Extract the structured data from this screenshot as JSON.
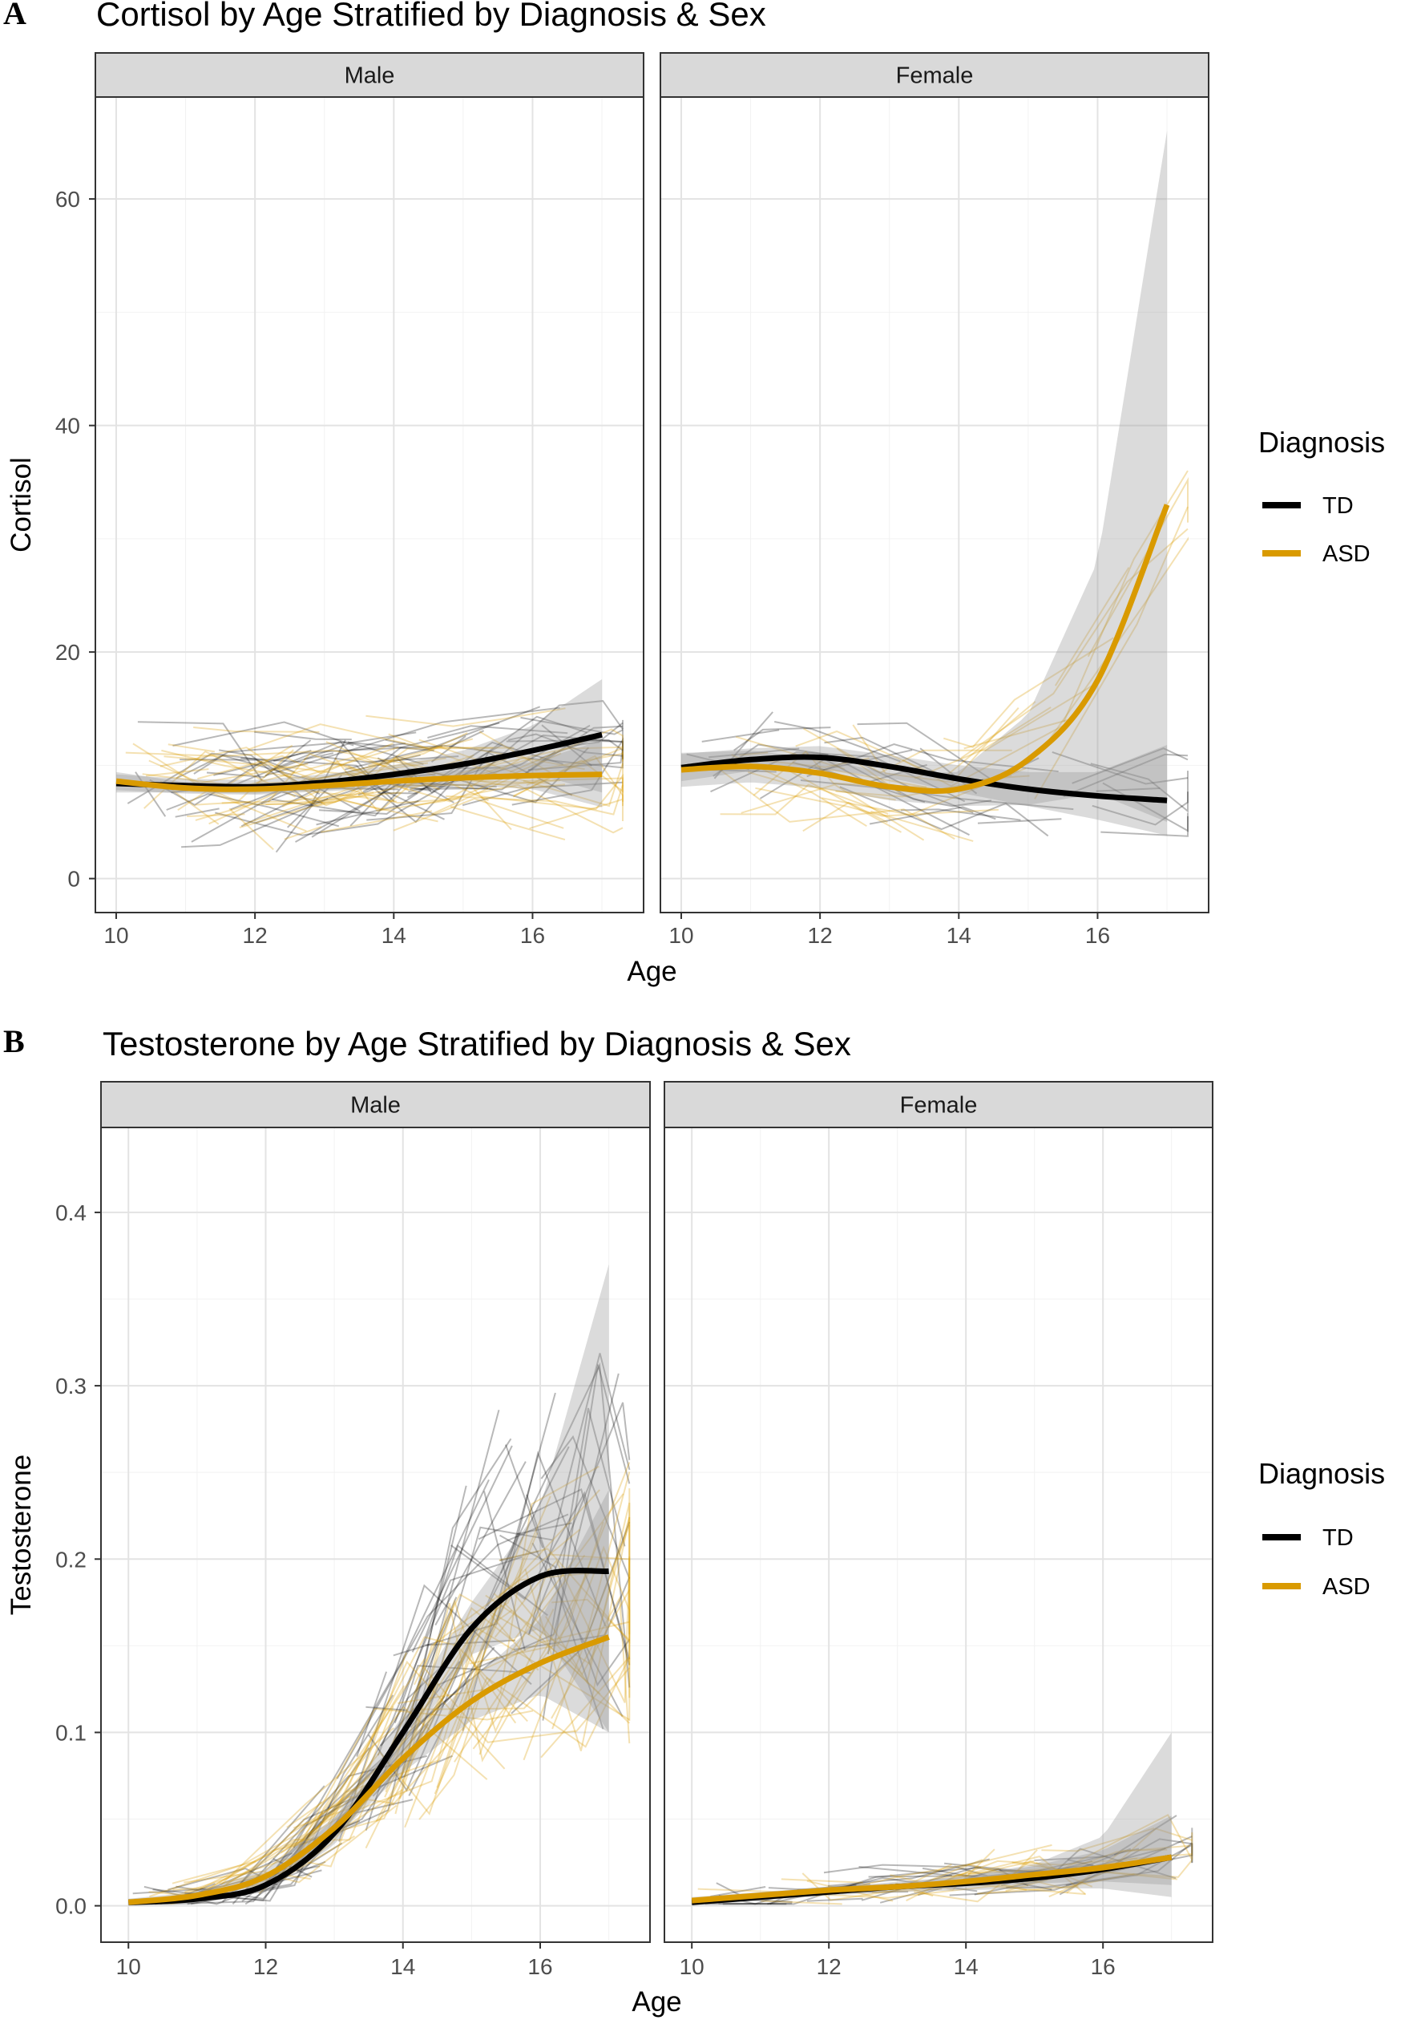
{
  "figure": {
    "legend": {
      "title": "Diagnosis",
      "entries": [
        {
          "name": "TD",
          "color": "#000000"
        },
        {
          "name": "ASD",
          "color": "#D99A00"
        }
      ]
    }
  },
  "chart_data": [
    {
      "panel_label": "A",
      "type": "line",
      "title": "Cortisol by Age Stratified by Diagnosis & Sex",
      "xlabel": "Age",
      "ylabel": "Cortisol",
      "xlim": [
        9.7,
        17.6
      ],
      "ylim": [
        -3,
        69
      ],
      "xticks": [
        10,
        12,
        14,
        16
      ],
      "yticks": [
        0,
        20,
        40,
        60
      ],
      "legend_position": "right",
      "facets": [
        {
          "name": "Male",
          "series": [
            {
              "name": "TD",
              "x": [
                10,
                11,
                12,
                13,
                14,
                15,
                16,
                17
              ],
              "y": [
                8.4,
                8.2,
                8.1,
                8.5,
                9.2,
                10.1,
                11.3,
                12.7
              ],
              "ci_low": [
                7.6,
                7.6,
                7.5,
                7.8,
                8.4,
                8.9,
                9.3,
                7.6
              ],
              "ci_high": [
                9.2,
                8.8,
                8.7,
                9.2,
                10.0,
                11.3,
                13.5,
                17.6
              ]
            },
            {
              "name": "ASD",
              "x": [
                10,
                11,
                12,
                13,
                14,
                15,
                16,
                17
              ],
              "y": [
                8.6,
                8.0,
                7.9,
                8.2,
                8.6,
                8.9,
                9.1,
                9.2
              ],
              "ci_low": [
                7.8,
                7.5,
                7.4,
                7.7,
                8.0,
                8.2,
                7.9,
                6.3
              ],
              "ci_high": [
                9.4,
                8.5,
                8.4,
                8.7,
                9.2,
                9.6,
                10.3,
                12.2
              ]
            }
          ]
        },
        {
          "name": "Female",
          "series": [
            {
              "name": "TD",
              "x": [
                10,
                11,
                12,
                13,
                14,
                15,
                16,
                17
              ],
              "y": [
                9.8,
                10.5,
                10.7,
                9.9,
                8.8,
                7.9,
                7.3,
                6.9
              ],
              "ci_low": [
                8.6,
                9.5,
                9.7,
                8.9,
                7.6,
                6.4,
                5.2,
                3.8
              ],
              "ci_high": [
                11.0,
                11.5,
                11.7,
                10.9,
                10.0,
                9.4,
                9.4,
                11.8
              ]
            },
            {
              "name": "ASD",
              "x": [
                10,
                11,
                12,
                13,
                14,
                15,
                16,
                17
              ],
              "y": [
                9.6,
                9.9,
                9.3,
                8.1,
                7.9,
                10.5,
                17.5,
                33.0
              ],
              "ci_low": [
                8.1,
                8.5,
                8.0,
                6.9,
                6.4,
                6.5,
                7.5,
                5.0
              ],
              "ci_high": [
                11.1,
                11.3,
                10.6,
                9.3,
                9.4,
                14.5,
                28.0,
                66.0
              ]
            }
          ]
        }
      ]
    },
    {
      "panel_label": "B",
      "type": "line",
      "title": "Testosterone by Age Stratified by Diagnosis & Sex",
      "xlabel": "Age",
      "ylabel": "Testosterone",
      "xlim": [
        9.6,
        17.6
      ],
      "ylim": [
        -0.021,
        0.449
      ],
      "xticks": [
        10,
        12,
        14,
        16
      ],
      "yticks": [
        0.0,
        0.1,
        0.2,
        0.3,
        0.4
      ],
      "legend_position": "right",
      "facets": [
        {
          "name": "Male",
          "series": [
            {
              "name": "TD",
              "x": [
                10,
                11,
                12,
                13,
                14,
                15,
                16,
                17
              ],
              "y": [
                0.002,
                0.004,
                0.012,
                0.042,
                0.1,
                0.16,
                0.19,
                0.193
              ],
              "ci_low": [
                0.0,
                0.002,
                0.008,
                0.035,
                0.09,
                0.145,
                0.16,
                0.1
              ],
              "ci_high": [
                0.004,
                0.006,
                0.016,
                0.05,
                0.11,
                0.175,
                0.23,
                0.37
              ]
            },
            {
              "name": "ASD",
              "x": [
                10,
                11,
                12,
                13,
                14,
                15,
                16,
                17
              ],
              "y": [
                0.002,
                0.006,
                0.017,
                0.045,
                0.085,
                0.118,
                0.14,
                0.155
              ],
              "ci_low": [
                0.0,
                0.004,
                0.013,
                0.039,
                0.077,
                0.107,
                0.122,
                0.1
              ],
              "ci_high": [
                0.004,
                0.008,
                0.021,
                0.051,
                0.093,
                0.13,
                0.165,
                0.24
              ]
            }
          ]
        },
        {
          "name": "Female",
          "series": [
            {
              "name": "TD",
              "x": [
                10,
                11,
                12,
                13,
                14,
                15,
                16,
                17
              ],
              "y": [
                0.002,
                0.005,
                0.008,
                0.011,
                0.013,
                0.016,
                0.021,
                0.028
              ],
              "ci_low": [
                0.0,
                0.003,
                0.006,
                0.008,
                0.009,
                0.01,
                0.01,
                0.005
              ],
              "ci_high": [
                0.004,
                0.007,
                0.01,
                0.014,
                0.017,
                0.024,
                0.04,
                0.1
              ]
            },
            {
              "name": "ASD",
              "x": [
                10,
                11,
                12,
                13,
                14,
                15,
                16,
                17
              ],
              "y": [
                0.003,
                0.006,
                0.009,
                0.011,
                0.014,
                0.018,
                0.022,
                0.028
              ],
              "ci_low": [
                0.001,
                0.004,
                0.007,
                0.009,
                0.011,
                0.013,
                0.014,
                0.012
              ],
              "ci_high": [
                0.005,
                0.008,
                0.011,
                0.013,
                0.017,
                0.023,
                0.032,
                0.052
              ]
            }
          ]
        }
      ]
    }
  ]
}
